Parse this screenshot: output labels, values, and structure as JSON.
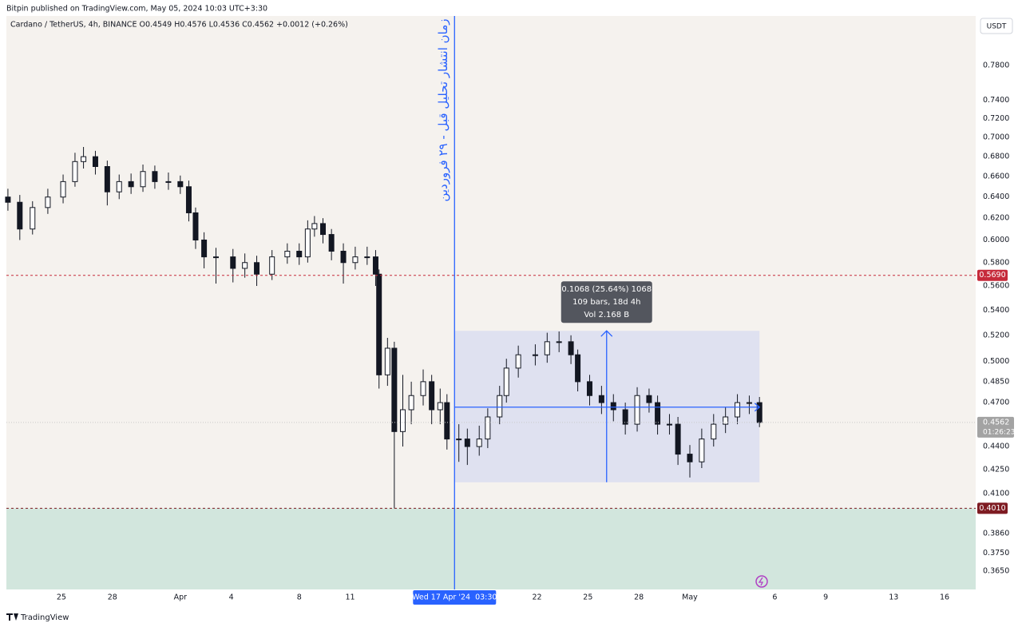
{
  "header": {
    "published": "Bitpin published on TradingView.com, May 05, 2024 10:03 UTC+3:30"
  },
  "chart_data": {
    "type": "candlestick",
    "title": "Cardano / TetherUS, 4h, BINANCE  O0.4549  H0.4576  L0.4536  C0.4562  +0.0012 (+0.26%)",
    "currency": "USDT",
    "log_scale": true,
    "xlim": [
      20.76,
      77.83
    ],
    "ylim": [
      0.355,
      0.84
    ],
    "xticks": [
      {
        "value": 24,
        "label": "25"
      },
      {
        "value": 27,
        "label": "28"
      },
      {
        "value": 31,
        "label": "Apr"
      },
      {
        "value": 34,
        "label": "4"
      },
      {
        "value": 38,
        "label": "8"
      },
      {
        "value": 41,
        "label": "11"
      },
      {
        "value": 52,
        "label": "22"
      },
      {
        "value": 55,
        "label": "25"
      },
      {
        "value": 58,
        "label": "28"
      },
      {
        "value": 61,
        "label": "May"
      },
      {
        "value": 66,
        "label": "6"
      },
      {
        "value": 69,
        "label": "9"
      },
      {
        "value": 73,
        "label": "13"
      },
      {
        "value": 76,
        "label": "16"
      }
    ],
    "yticks": [
      {
        "value": 0.78,
        "label": "0.7800"
      },
      {
        "value": 0.74,
        "label": "0.7400"
      },
      {
        "value": 0.72,
        "label": "0.7200"
      },
      {
        "value": 0.7,
        "label": "0.7000"
      },
      {
        "value": 0.68,
        "label": "0.6800"
      },
      {
        "value": 0.66,
        "label": "0.6600"
      },
      {
        "value": 0.64,
        "label": "0.6400"
      },
      {
        "value": 0.62,
        "label": "0.6200"
      },
      {
        "value": 0.6,
        "label": "0.6000"
      },
      {
        "value": 0.58,
        "label": "0.5800"
      },
      {
        "value": 0.56,
        "label": "0.5600"
      },
      {
        "value": 0.54,
        "label": "0.5400"
      },
      {
        "value": 0.52,
        "label": "0.5200"
      },
      {
        "value": 0.5,
        "label": "0.5000"
      },
      {
        "value": 0.485,
        "label": "0.4850"
      },
      {
        "value": 0.47,
        "label": "0.4700"
      },
      {
        "value": 0.44,
        "label": "0.4400"
      },
      {
        "value": 0.425,
        "label": "0.4250"
      },
      {
        "value": 0.41,
        "label": "0.4100"
      },
      {
        "value": 0.386,
        "label": "0.3860"
      },
      {
        "value": 0.375,
        "label": "0.3750"
      },
      {
        "value": 0.365,
        "label": "0.3650"
      }
    ],
    "up_color": "#ffffff",
    "down_color": "#131722",
    "wick_color": "#131722",
    "x": [
      20.85,
      21.55,
      22.3,
      23.2,
      24.1,
      24.8,
      25.3,
      26,
      26.7,
      27.4,
      28.1,
      28.8,
      29.5,
      30.3,
      31,
      31.5,
      31.9,
      32.4,
      33.1,
      34.1,
      34.8,
      35.5,
      36.4,
      37.3,
      38,
      38.5,
      38.9,
      39.4,
      39.9,
      40.6,
      41.3,
      42,
      42.5,
      42.7,
      43.2,
      43.6,
      44.1,
      44.6,
      45.3,
      45.8,
      46.3,
      46.7,
      47.4,
      47.9,
      48.6,
      49.1,
      49.8,
      50.2,
      50.9,
      51.9,
      52.6,
      53.3,
      54,
      54.4,
      55.1,
      55.8,
      56.5,
      57.2,
      57.9,
      58.6,
      59.1,
      59.8,
      60.3,
      61,
      61.7,
      62.4,
      63.1,
      63.8,
      64.5,
      65.1
    ],
    "open": [
      0.64,
      0.635,
      0.61,
      0.63,
      0.64,
      0.655,
      0.675,
      0.68,
      0.67,
      0.645,
      0.655,
      0.65,
      0.665,
      0.655,
      0.655,
      0.65,
      0.625,
      0.6,
      0.585,
      0.585,
      0.575,
      0.58,
      0.57,
      0.585,
      0.59,
      0.585,
      0.61,
      0.615,
      0.605,
      0.59,
      0.58,
      0.585,
      0.585,
      0.57,
      0.49,
      0.51,
      0.45,
      0.465,
      0.475,
      0.485,
      0.465,
      0.47,
      0.445,
      0.445,
      0.44,
      0.445,
      0.46,
      0.475,
      0.495,
      0.505,
      0.505,
      0.515,
      0.515,
      0.505,
      0.485,
      0.475,
      0.47,
      0.465,
      0.455,
      0.475,
      0.47,
      0.455,
      0.455,
      0.435,
      0.43,
      0.445,
      0.455,
      0.46,
      0.47,
      0.47
    ],
    "high": [
      0.648,
      0.642,
      0.636,
      0.648,
      0.662,
      0.684,
      0.69,
      0.686,
      0.676,
      0.662,
      0.663,
      0.672,
      0.671,
      0.664,
      0.661,
      0.656,
      0.63,
      0.607,
      0.593,
      0.592,
      0.588,
      0.586,
      0.591,
      0.597,
      0.597,
      0.618,
      0.622,
      0.62,
      0.61,
      0.597,
      0.594,
      0.594,
      0.591,
      0.574,
      0.518,
      0.515,
      0.49,
      0.485,
      0.494,
      0.49,
      0.48,
      0.476,
      0.455,
      0.452,
      0.454,
      0.466,
      0.482,
      0.502,
      0.512,
      0.513,
      0.522,
      0.523,
      0.52,
      0.509,
      0.49,
      0.482,
      0.476,
      0.47,
      0.481,
      0.48,
      0.475,
      0.462,
      0.46,
      0.441,
      0.452,
      0.462,
      0.467,
      0.476,
      0.475,
      0.474
    ],
    "low": [
      0.627,
      0.6,
      0.605,
      0.624,
      0.634,
      0.65,
      0.668,
      0.662,
      0.632,
      0.638,
      0.643,
      0.645,
      0.648,
      0.647,
      0.643,
      0.617,
      0.592,
      0.575,
      0.562,
      0.563,
      0.567,
      0.56,
      0.565,
      0.579,
      0.578,
      0.58,
      0.603,
      0.597,
      0.582,
      0.562,
      0.574,
      0.578,
      0.56,
      0.48,
      0.482,
      0.401,
      0.44,
      0.455,
      0.468,
      0.455,
      0.455,
      0.438,
      0.43,
      0.428,
      0.434,
      0.439,
      0.455,
      0.47,
      0.488,
      0.497,
      0.499,
      0.507,
      0.498,
      0.478,
      0.468,
      0.462,
      0.457,
      0.448,
      0.45,
      0.463,
      0.448,
      0.448,
      0.428,
      0.42,
      0.426,
      0.44,
      0.449,
      0.455,
      0.462,
      0.453
    ],
    "close": [
      0.635,
      0.61,
      0.63,
      0.64,
      0.655,
      0.675,
      0.68,
      0.67,
      0.645,
      0.655,
      0.65,
      0.665,
      0.655,
      0.655,
      0.65,
      0.625,
      0.6,
      0.585,
      0.585,
      0.575,
      0.58,
      0.57,
      0.585,
      0.59,
      0.585,
      0.61,
      0.615,
      0.605,
      0.59,
      0.58,
      0.585,
      0.585,
      0.57,
      0.49,
      0.51,
      0.45,
      0.465,
      0.475,
      0.485,
      0.465,
      0.47,
      0.445,
      0.445,
      0.44,
      0.445,
      0.46,
      0.475,
      0.495,
      0.505,
      0.505,
      0.515,
      0.515,
      0.505,
      0.485,
      0.475,
      0.47,
      0.465,
      0.455,
      0.475,
      0.47,
      0.455,
      0.455,
      0.435,
      0.43,
      0.445,
      0.455,
      0.46,
      0.47,
      0.47,
      0.4562
    ],
    "levels": [
      {
        "value": 0.569,
        "label": "0.5690",
        "color": "#c62a3a"
      },
      {
        "value": 0.401,
        "label": "0.4010",
        "color": "#7e1b22",
        "zone_below": "#d2e6dd"
      }
    ],
    "last": {
      "value": 0.4562,
      "label": "0.4562",
      "countdown": "01:26:23",
      "color": "#a3a3a3"
    },
    "measure": {
      "x": [
        47.146,
        65.1
      ],
      "low": 0.417,
      "high": 0.5235,
      "base": 0.4668,
      "arrow_x": 56.1,
      "color": "#2962ff",
      "lines": [
        "0.1068 (25.64%) 1068",
        "109 bars, 18d 4h",
        "Vol 2.168 B"
      ]
    },
    "marker": {
      "x": 47.146,
      "label": "Wed 17 Apr '24  03:30",
      "note": "زمان انتشار تحلیل قبل - ۲۹ فروردین",
      "color": "#2962ff"
    }
  },
  "footer": {
    "brand": "TradingView"
  }
}
